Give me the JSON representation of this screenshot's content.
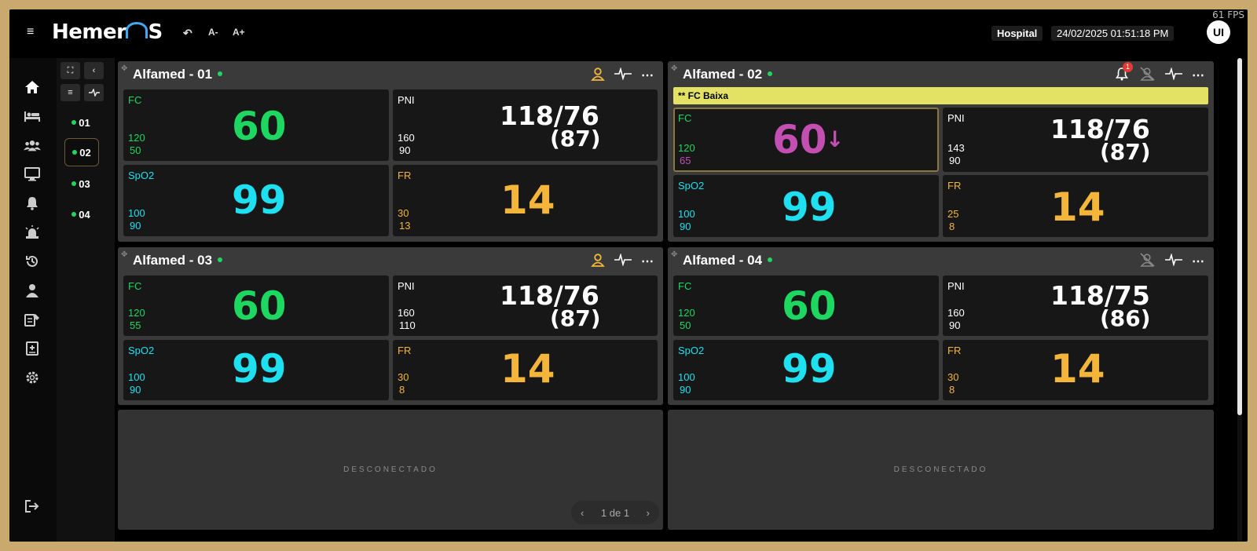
{
  "app": {
    "fps": "61 FPS",
    "logo": "Hemer",
    "logo_tail": "S",
    "font_minus": "A-",
    "font_plus": "A+",
    "hospital": "Hospital",
    "datetime": "24/02/2025 01:51:18 PM",
    "avatar": "UI"
  },
  "beds": [
    "01",
    "02",
    "03",
    "04"
  ],
  "monitors": [
    {
      "title": "Alfamed - 01",
      "fc": {
        "label": "FC",
        "value": "60",
        "hi": "120",
        "lo": "50"
      },
      "pni": {
        "label": "PNI",
        "value": "118/76",
        "mean": "(87)",
        "hi": "160",
        "lo": "90"
      },
      "spo2": {
        "label": "SpO2",
        "value": "99",
        "hi": "100",
        "lo": "90"
      },
      "fr": {
        "label": "FR",
        "value": "14",
        "hi": "30",
        "lo": "13"
      }
    },
    {
      "title": "Alfamed - 02",
      "alarm_badge": "1",
      "alert": "** FC Baixa",
      "fc": {
        "label": "FC",
        "value": "60",
        "arrow": "↓",
        "hi": "120",
        "lo": "65"
      },
      "pni": {
        "label": "PNI",
        "value": "118/76",
        "mean": "(87)",
        "hi": "143",
        "lo": "90"
      },
      "spo2": {
        "label": "SpO2",
        "value": "99",
        "hi": "100",
        "lo": "90"
      },
      "fr": {
        "label": "FR",
        "value": "14",
        "hi": "25",
        "lo": "8"
      }
    },
    {
      "title": "Alfamed - 03",
      "fc": {
        "label": "FC",
        "value": "60",
        "hi": "120",
        "lo": "55"
      },
      "pni": {
        "label": "PNI",
        "value": "118/76",
        "mean": "(87)",
        "hi": "160",
        "lo": "110"
      },
      "spo2": {
        "label": "SpO2",
        "value": "99",
        "hi": "100",
        "lo": "90"
      },
      "fr": {
        "label": "FR",
        "value": "14",
        "hi": "30",
        "lo": "8"
      }
    },
    {
      "title": "Alfamed - 04",
      "fc": {
        "label": "FC",
        "value": "60",
        "hi": "120",
        "lo": "50"
      },
      "pni": {
        "label": "PNI",
        "value": "118/75",
        "mean": "(86)",
        "hi": "160",
        "lo": "90"
      },
      "spo2": {
        "label": "SpO2",
        "value": "99",
        "hi": "100",
        "lo": "90"
      },
      "fr": {
        "label": "FR",
        "value": "14",
        "hi": "30",
        "lo": "8"
      }
    }
  ],
  "disconnected": [
    "DESCONECTADO",
    "DESCONECTADO"
  ],
  "pager": {
    "label": "1 de 1"
  },
  "colors": {
    "fc": "#1ed760",
    "pni": "#ffffff",
    "spo2": "#1ee0f0",
    "fr": "#f3b53a",
    "alarm": "#c24fb1",
    "accent": "#3fa9f5"
  }
}
